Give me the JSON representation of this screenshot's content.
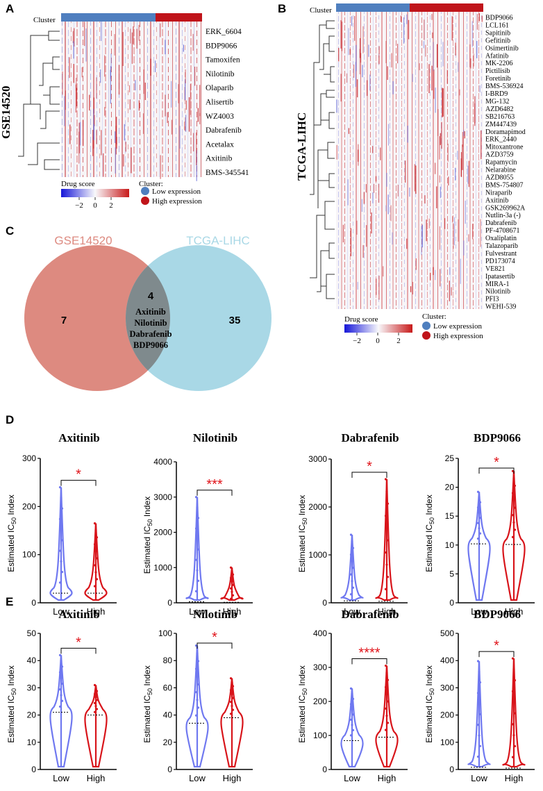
{
  "panelA": {
    "letter": "A",
    "dataset": "GSE14520",
    "cluster_label": "Cluster",
    "drugs": [
      "ERK_6604",
      "BDP9066",
      "Tamoxifen",
      "Nilotinib",
      "Olaparib",
      "Alisertib",
      "WZ4003",
      "Dabrafenib",
      "Acetalax",
      "Axitinib",
      "BMS-345541"
    ],
    "legend_title": "Drug score",
    "legend_ticks": [
      "−2",
      "0",
      "2"
    ],
    "cluster_legend_title": "Cluster:",
    "cluster_low": "Low expression",
    "cluster_high": "High expression"
  },
  "panelB": {
    "letter": "B",
    "dataset": "TCGA-LIHC",
    "cluster_label": "Cluster",
    "drugs": [
      "BDP9066",
      "LCL161",
      "Sapitinib",
      "Gefitinib",
      "Osimertinib",
      "Afatinib",
      "MK-2206",
      "Pictilisib",
      "Foretinib",
      "BMS-536924",
      "I-BRD9",
      "MG-132",
      "AZD6482",
      "SB216763",
      "ZM447439",
      "Doramapimod",
      "ERK_2440",
      "Mitoxantrone",
      "AZD3759",
      "Rapamycin",
      "Nelarabine",
      "AZD8055",
      "BMS-754807",
      "Niraparib",
      "Axitinib",
      "GSK269962A",
      "Nutlin-3a (-)",
      "Dabrafenib",
      "PF-4708671",
      "Oxaliplatin",
      "Talazoparib",
      "Fulvestrant",
      "PD173074",
      "VE821",
      "Ipatasertib",
      "MIRA-1",
      "Nilotinib",
      "PFI3",
      "WEHI-539"
    ],
    "legend_title": "Drug score",
    "legend_ticks": [
      "−2",
      "0",
      "2"
    ],
    "cluster_legend_title": "Cluster:",
    "cluster_low": "Low expression",
    "cluster_high": "High expression"
  },
  "panelC": {
    "letter": "C",
    "left_title": "GSE14520",
    "right_title": "TCGA-LIHC",
    "left_count": "7",
    "overlap_count": "4",
    "right_count": "35",
    "overlap_drugs": [
      "Axitinib",
      "Nilotinib",
      "Dabrafenib",
      "BDP9066"
    ]
  },
  "colors": {
    "low": "#4f7fbf",
    "high": "#c0141a",
    "venn_left": "#dd8a80",
    "venn_right": "#a9d8e6",
    "venn_overlap": "#7f8a8d",
    "violin_low": "#6f78f0",
    "violin_high": "#d8141a"
  },
  "panelD": {
    "letter": "D",
    "ylabel_prefix": "Estimated IC",
    "ylabel_sub": "50",
    "ylabel_suffix": " Index",
    "groups": [
      "Low",
      "High"
    ]
  },
  "panelE": {
    "letter": "E",
    "groups": [
      "Low",
      "High"
    ]
  },
  "chart_data": [
    {
      "type": "violin",
      "panel": "D",
      "title": "Axitinib",
      "ylim": [
        0,
        300
      ],
      "yticks": [
        "0",
        "100",
        "200",
        "300"
      ],
      "significance": "*",
      "series": [
        {
          "name": "Low",
          "median": 20,
          "max": 240
        },
        {
          "name": "High",
          "median": 20,
          "max": 165
        }
      ]
    },
    {
      "type": "violin",
      "panel": "D",
      "title": "Nilotinib",
      "ylim": [
        0,
        4000
      ],
      "yticks": [
        "0",
        "1000",
        "2000",
        "3000",
        "4000"
      ],
      "significance": "***",
      "series": [
        {
          "name": "Low",
          "median": 30,
          "max": 3000
        },
        {
          "name": "High",
          "median": 15,
          "max": 1000
        }
      ]
    },
    {
      "type": "violin",
      "panel": "D",
      "title": "Dabrafenib",
      "ylim": [
        0,
        3000
      ],
      "yticks": [
        "0",
        "1000",
        "2000",
        "3000"
      ],
      "significance": "*",
      "series": [
        {
          "name": "Low",
          "median": 40,
          "max": 1420
        },
        {
          "name": "High",
          "median": 30,
          "max": 2580
        }
      ]
    },
    {
      "type": "violin",
      "panel": "D",
      "title": "BDP9066",
      "ylim": [
        0,
        25
      ],
      "yticks": [
        "0",
        "5",
        "10",
        "15",
        "20",
        "25"
      ],
      "significance": "*",
      "series": [
        {
          "name": "Low",
          "median": 10.2,
          "max": 19.2
        },
        {
          "name": "High",
          "median": 10.1,
          "max": 22.8
        }
      ]
    },
    {
      "type": "violin",
      "panel": "E",
      "title": "Axitinib",
      "ylim": [
        0,
        50
      ],
      "yticks": [
        "0",
        "10",
        "20",
        "30",
        "40",
        "50"
      ],
      "significance": "*",
      "series": [
        {
          "name": "Low",
          "median": 21,
          "max": 42
        },
        {
          "name": "High",
          "median": 20,
          "max": 31
        }
      ]
    },
    {
      "type": "violin",
      "panel": "E",
      "title": "Nilotinib",
      "ylim": [
        0,
        100
      ],
      "yticks": [
        "0",
        "20",
        "40",
        "60",
        "80",
        "100"
      ],
      "significance": "*",
      "series": [
        {
          "name": "Low",
          "median": 34,
          "max": 91
        },
        {
          "name": "High",
          "median": 38,
          "max": 67
        }
      ]
    },
    {
      "type": "violin",
      "panel": "E",
      "title": "Dabrafenib",
      "ylim": [
        0,
        400
      ],
      "yticks": [
        "0",
        "100",
        "200",
        "300",
        "400"
      ],
      "significance": "****",
      "series": [
        {
          "name": "Low",
          "median": 85,
          "max": 238
        },
        {
          "name": "High",
          "median": 95,
          "max": 305
        }
      ]
    },
    {
      "type": "violin",
      "panel": "E",
      "title": "BDP9066",
      "ylim": [
        0,
        500
      ],
      "yticks": [
        "0",
        "100",
        "200",
        "300",
        "400",
        "500"
      ],
      "significance": "*",
      "series": [
        {
          "name": "Low",
          "median": 8,
          "max": 398
        },
        {
          "name": "High",
          "median": 5,
          "max": 408
        }
      ]
    }
  ]
}
